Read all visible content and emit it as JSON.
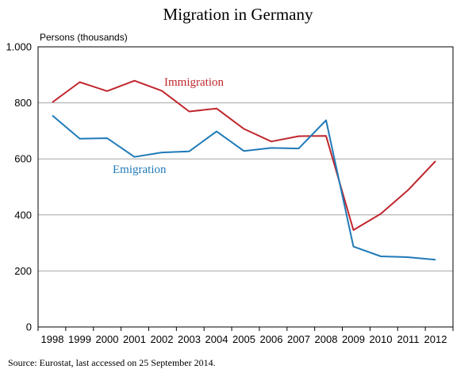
{
  "chart_data": {
    "type": "line",
    "title": "Migration in Germany",
    "ylabel": "Persons (thousands)",
    "xlabel": "",
    "x": [
      "1998",
      "1999",
      "2000",
      "2001",
      "2002",
      "2003",
      "2004",
      "2005",
      "2006",
      "2007",
      "2008",
      "2009",
      "2010",
      "2011",
      "2012"
    ],
    "ylim": [
      0,
      1000
    ],
    "yticks": [
      0,
      200,
      400,
      600,
      800,
      1000
    ],
    "ytick_labels": [
      "0",
      "200",
      "400",
      "600",
      "800",
      "1.000"
    ],
    "grid": "horizontal",
    "series": [
      {
        "name": "Immigration",
        "color": "#c0272d",
        "values": [
          802,
          874,
          842,
          879,
          843,
          769,
          780,
          707,
          662,
          681,
          682,
          346,
          404,
          489,
          592
        ]
      },
      {
        "name": "Emigration",
        "color": "#1f7ab8",
        "values": [
          755,
          672,
          674,
          607,
          623,
          627,
          698,
          628,
          639,
          637,
          738,
          287,
          252,
          249,
          240
        ]
      }
    ],
    "source": "Source: Eurostat, last accessed on 25 September 2014."
  }
}
